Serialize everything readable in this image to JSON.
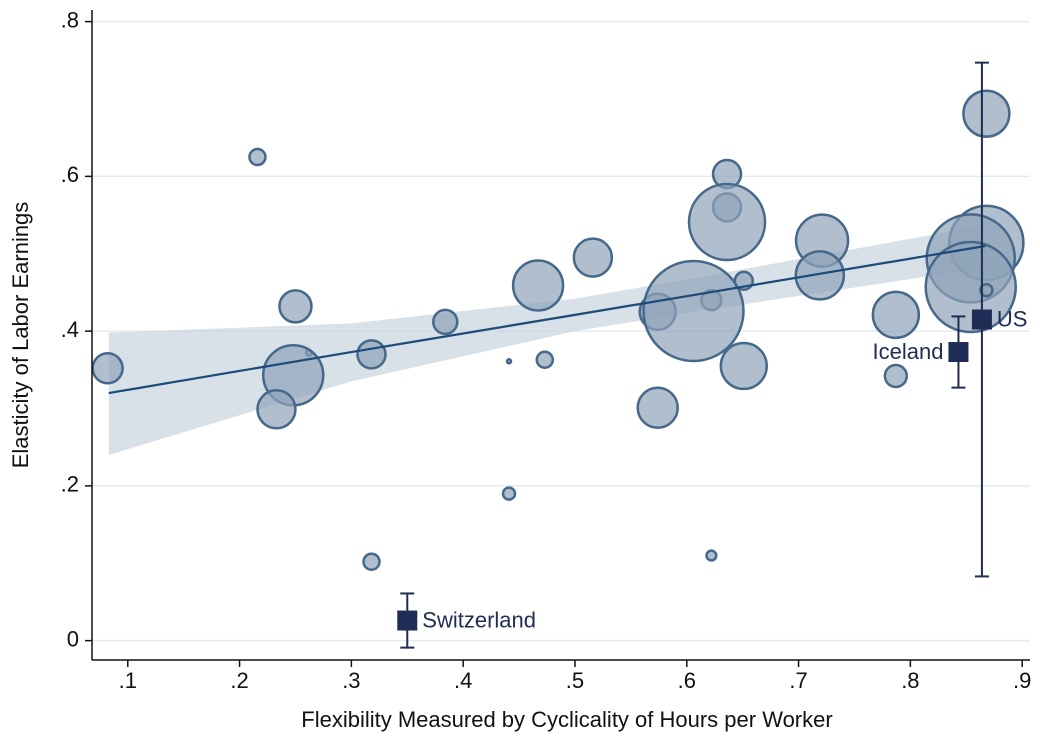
{
  "chart_data": {
    "type": "scatter",
    "x_label": "Flexibility Measured by Cyclicality of Hours per Worker",
    "y_label": "Elasticity of Labor Earnings",
    "xlim": [
      0.068,
      0.907
    ],
    "ylim": [
      -0.025,
      0.815
    ],
    "xticks": [
      {
        "value": 0.1,
        "label": ".1"
      },
      {
        "value": 0.2,
        "label": ".2"
      },
      {
        "value": 0.3,
        "label": ".3"
      },
      {
        "value": 0.4,
        "label": ".4"
      },
      {
        "value": 0.5,
        "label": ".5"
      },
      {
        "value": 0.6,
        "label": ".6"
      },
      {
        "value": 0.7,
        "label": ".7"
      },
      {
        "value": 0.8,
        "label": ".8"
      },
      {
        "value": 0.9,
        "label": ".9"
      }
    ],
    "yticks": [
      0,
      {
        "value": 0.2,
        "label": ".2"
      },
      {
        "value": 0.4,
        "label": ".4"
      },
      {
        "value": 0.6,
        "label": ".6"
      },
      {
        "value": 0.8,
        "label": ".8"
      }
    ],
    "grid": true,
    "bubbles": {
      "color": "#8fa3b9",
      "x": [
        0.082,
        0.216,
        0.25,
        0.262,
        0.248,
        0.233,
        0.318,
        0.318,
        0.384,
        0.441,
        0.441,
        0.467,
        0.473,
        0.516,
        0.574,
        0.574,
        0.622,
        0.622,
        0.636,
        0.636,
        0.636,
        0.606,
        0.651,
        0.651,
        0.721,
        0.719,
        0.787,
        0.787,
        0.868,
        0.868,
        0.854,
        0.854,
        0.868
      ],
      "y": [
        0.352,
        0.625,
        0.432,
        0.372,
        0.343,
        0.299,
        0.37,
        0.102,
        0.412,
        0.361,
        0.19,
        0.459,
        0.363,
        0.495,
        0.425,
        0.301,
        0.44,
        0.11,
        0.603,
        0.56,
        0.541,
        0.426,
        0.465,
        0.355,
        0.517,
        0.472,
        0.421,
        0.342,
        0.681,
        0.514,
        0.494,
        0.457,
        0.453
      ],
      "sizes": [
        56,
        16,
        64,
        2,
        225,
        90,
        49,
        16,
        36,
        1,
        9,
        156,
        16,
        90,
        81,
        100,
        25,
        6,
        49,
        49,
        361,
        625,
        20,
        132,
        169,
        144,
        132,
        30,
        132,
        342,
        484,
        506,
        9
      ]
    },
    "fit": {
      "color": "#1b4b78",
      "band_color": "#cbd5e0",
      "x": [
        0.083,
        0.3,
        0.5,
        0.62,
        0.867
      ],
      "y": [
        0.32,
        0.373,
        0.421,
        0.45,
        0.51
      ],
      "ci_low": [
        0.24,
        0.335,
        0.4,
        0.428,
        0.482
      ],
      "ci_high": [
        0.398,
        0.41,
        0.442,
        0.472,
        0.537
      ]
    },
    "highlights": {
      "color": "#1f2d55",
      "labels": [
        "Switzerland",
        "Iceland",
        "US"
      ],
      "x": [
        0.35,
        0.843,
        0.864
      ],
      "y": [
        0.026,
        0.373,
        0.415
      ],
      "errors": [
        0.035,
        0.046,
        0.332
      ]
    }
  }
}
